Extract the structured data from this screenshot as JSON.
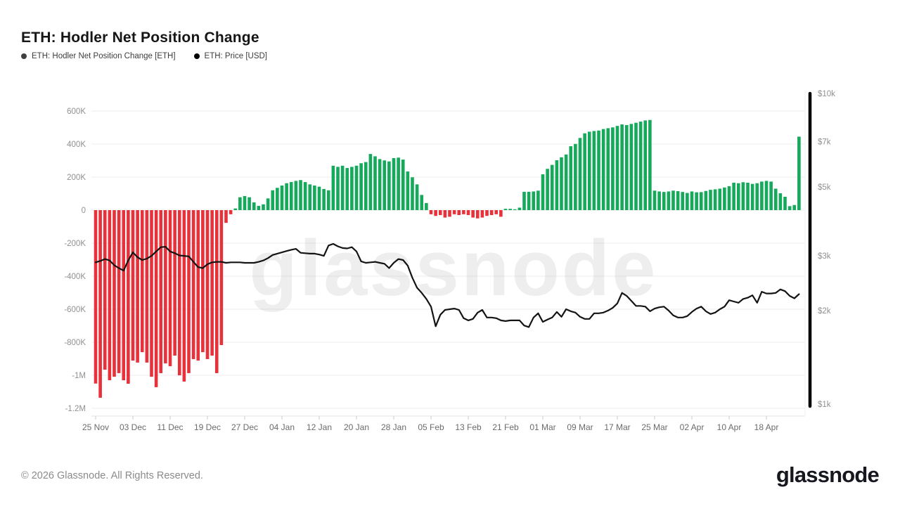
{
  "header": {
    "title": "ETH: Hodler Net Position Change"
  },
  "legend": [
    {
      "label": "ETH: Hodler Net Position Change [ETH]",
      "dot_color": "#3f3f3f"
    },
    {
      "label": "ETH: Price [USD]",
      "dot_color": "#000000"
    }
  ],
  "watermark": "glassnode",
  "footer": {
    "copyright": "© 2026 Glassnode. All Rights Reserved.",
    "logo_text": "glassnode"
  },
  "chart_data": {
    "type": "combo",
    "title": "ETH: Hodler Net Position Change",
    "grid": "horizontal",
    "x": {
      "unit": "day",
      "day0_label": "25 Nov",
      "tick_interval_days": 8,
      "tick_labels": [
        "25 Nov",
        "03 Dec",
        "11 Dec",
        "19 Dec",
        "27 Dec",
        "04 Jan",
        "12 Jan",
        "20 Jan",
        "28 Jan",
        "05 Feb",
        "13 Feb",
        "21 Feb",
        "01 Mar",
        "09 Mar",
        "17 Mar",
        "25 Mar",
        "02 Apr",
        "10 Apr",
        "18 Apr"
      ]
    },
    "left_axis": {
      "unit": "ETH",
      "scale": "linear",
      "tick_labels": [
        "600K",
        "400K",
        "200K",
        "0",
        "-200K",
        "-400K",
        "-600K",
        "-800K",
        "-1M",
        "-1.2M"
      ],
      "tick_values_k": [
        600,
        400,
        200,
        0,
        -200,
        -400,
        -600,
        -800,
        -1000,
        -1200
      ],
      "range_k": [
        -1260,
        720
      ]
    },
    "right_axis": {
      "unit": "USD",
      "scale": "log",
      "tick_labels": [
        "$10k",
        "$7k",
        "$5k",
        "$3k",
        "$2k",
        "$1k"
      ],
      "tick_values": [
        10000,
        7000,
        5000,
        3000,
        2000,
        1000
      ],
      "range": [
        1000,
        10000
      ]
    },
    "series": [
      {
        "name": "ETH: Hodler Net Position Change [ETH]",
        "type": "bar",
        "axis": "left",
        "positive_color": "#16a95c",
        "negative_color": "#e7323b",
        "values_k_eth": [
          -1050,
          -1136,
          -966,
          -1030,
          -1009,
          -987,
          -1030,
          -1051,
          -911,
          -923,
          -860,
          -923,
          -1009,
          -1072,
          -987,
          -928,
          -945,
          -881,
          -1000,
          -1038,
          -987,
          -902,
          -911,
          -860,
          -902,
          -881,
          -987,
          -817,
          -77,
          -25,
          10,
          78,
          85,
          78,
          47,
          26,
          35,
          71,
          120,
          135,
          149,
          163,
          170,
          177,
          182,
          170,
          156,
          149,
          142,
          128,
          120,
          269,
          262,
          269,
          255,
          262,
          269,
          284,
          291,
          340,
          326,
          309,
          301,
          295,
          315,
          318,
          306,
          234,
          199,
          156,
          92,
          43,
          -25,
          -35,
          -30,
          -45,
          -40,
          -25,
          -30,
          -25,
          -30,
          -45,
          -50,
          -45,
          -35,
          -30,
          -25,
          -40,
          8,
          8,
          5,
          15,
          111,
          111,
          113,
          118,
          217,
          250,
          274,
          302,
          320,
          337,
          387,
          401,
          437,
          465,
          475,
          479,
          482,
          491,
          496,
          501,
          510,
          519,
          515,
          522,
          529,
          536,
          543,
          546,
          118,
          113,
          110,
          113,
          118,
          115,
          110,
          104,
          113,
          108,
          109,
          116,
          123,
          126,
          130,
          137,
          145,
          166,
          163,
          169,
          166,
          159,
          163,
          173,
          177,
          173,
          130,
          102,
          81,
          24,
          31,
          445
        ]
      },
      {
        "name": "ETH: Price [USD]",
        "type": "line",
        "axis": "right",
        "color": "#141414",
        "values_usd": [
          2860,
          2890,
          2930,
          2900,
          2800,
          2740,
          2690,
          2900,
          3080,
          2970,
          2910,
          2940,
          3000,
          3100,
          3200,
          3210,
          3100,
          3060,
          3010,
          3000,
          2990,
          2870,
          2760,
          2740,
          2820,
          2860,
          2870,
          2870,
          2850,
          2860,
          2860,
          2860,
          2850,
          2850,
          2850,
          2870,
          2900,
          2950,
          3020,
          3050,
          3080,
          3110,
          3140,
          3160,
          3070,
          3060,
          3050,
          3050,
          3030,
          3000,
          3240,
          3280,
          3220,
          3180,
          3170,
          3200,
          3100,
          2880,
          2850,
          2860,
          2870,
          2850,
          2830,
          2740,
          2850,
          2930,
          2910,
          2790,
          2550,
          2370,
          2280,
          2180,
          2060,
          1780,
          1940,
          2010,
          2020,
          2030,
          2010,
          1890,
          1860,
          1880,
          1970,
          2010,
          1900,
          1900,
          1890,
          1860,
          1850,
          1860,
          1860,
          1860,
          1790,
          1770,
          1900,
          1960,
          1840,
          1870,
          1900,
          1980,
          1910,
          2020,
          1990,
          1970,
          1910,
          1880,
          1880,
          1960,
          1960,
          1970,
          2000,
          2040,
          2110,
          2280,
          2230,
          2150,
          2070,
          2070,
          2060,
          1990,
          2030,
          2050,
          2060,
          2000,
          1930,
          1900,
          1900,
          1920,
          1980,
          2030,
          2060,
          1990,
          1950,
          1970,
          2020,
          2060,
          2160,
          2140,
          2120,
          2180,
          2200,
          2240,
          2120,
          2300,
          2270,
          2270,
          2280,
          2340,
          2310,
          2230,
          2190,
          2260
        ]
      }
    ]
  }
}
